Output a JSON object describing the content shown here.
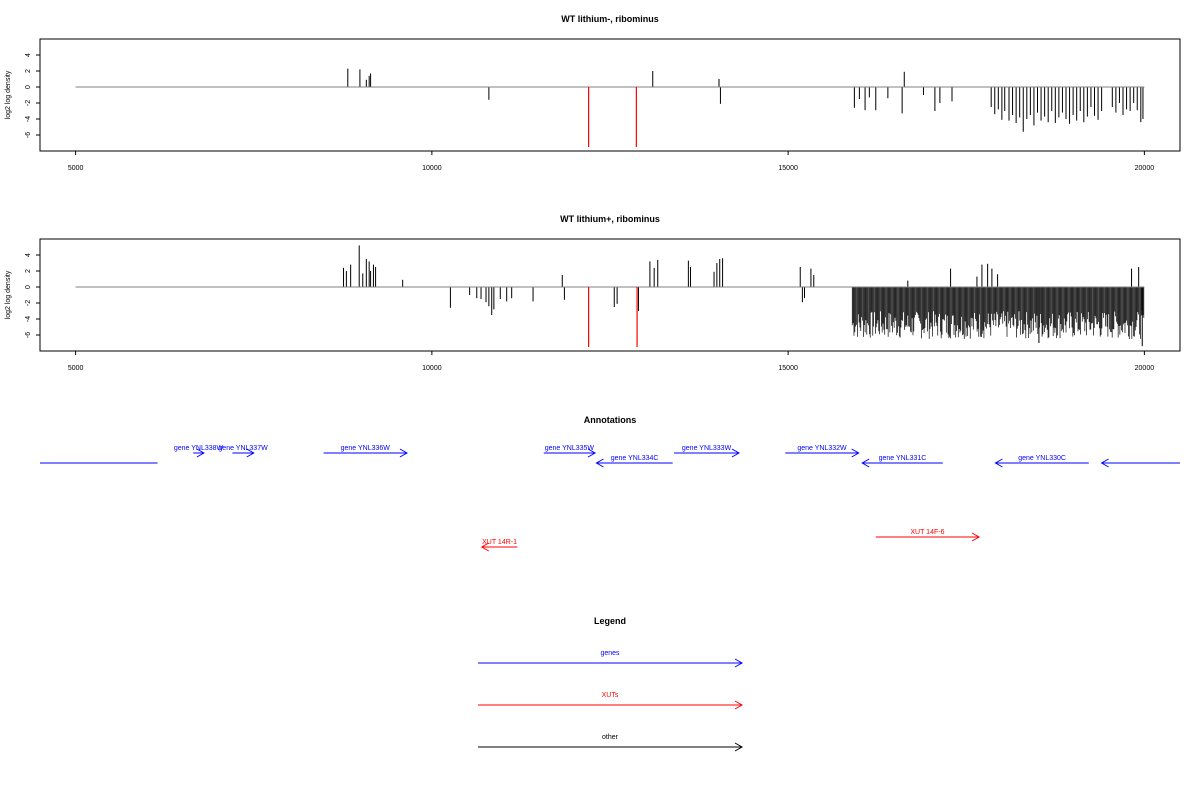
{
  "chart_data": [
    {
      "type": "bar",
      "title": "WT lithium-, ribominus",
      "ylabel": "log2 log density",
      "xlim": [
        4500,
        20500
      ],
      "ylim": [
        -8,
        6
      ],
      "xticks": [
        5000,
        10000,
        15000,
        20000
      ],
      "xtick_labels": [
        "5000",
        "10000",
        "15000",
        "20000"
      ],
      "yticks": [
        -6,
        -4,
        -2,
        0,
        2,
        4
      ],
      "ytick_labels": [
        "-6",
        "-4",
        "-2",
        "0",
        "2",
        "4"
      ],
      "baseline": {
        "from": 5000,
        "to": 20000,
        "value": 0
      },
      "bar_color": "#000000",
      "highlight_color": "#ff0000",
      "bars": [
        [
          8820,
          2.3
        ],
        [
          8990,
          2.2
        ],
        [
          9080,
          0.9
        ],
        [
          9120,
          1.4
        ],
        [
          9140,
          1.7
        ],
        [
          10800,
          -1.6
        ],
        [
          13100,
          2.0
        ],
        [
          14030,
          1.0
        ],
        [
          14050,
          -2.1
        ],
        [
          15930,
          -2.6
        ],
        [
          16000,
          -1.5
        ],
        [
          16080,
          -2.9
        ],
        [
          16140,
          -1.3
        ],
        [
          16230,
          -2.9
        ],
        [
          16400,
          -1.4
        ],
        [
          16600,
          -3.3
        ],
        [
          16630,
          1.9
        ],
        [
          16900,
          -1.0
        ],
        [
          17060,
          -3.0
        ],
        [
          17130,
          -2.0
        ],
        [
          17300,
          -1.8
        ],
        [
          17850,
          -2.5
        ],
        [
          17900,
          -3.4
        ],
        [
          17950,
          -2.8
        ],
        [
          18000,
          -4.1
        ],
        [
          18040,
          -3.0
        ],
        [
          18100,
          -4.2
        ],
        [
          18150,
          -3.5
        ],
        [
          18200,
          -4.5
        ],
        [
          18250,
          -3.8
        ],
        [
          18300,
          -5.6
        ],
        [
          18350,
          -4.0
        ],
        [
          18400,
          -3.5
        ],
        [
          18450,
          -4.8
        ],
        [
          18500,
          -3.2
        ],
        [
          18550,
          -4.2
        ],
        [
          18600,
          -3.7
        ],
        [
          18650,
          -4.4
        ],
        [
          18700,
          -3.0
        ],
        [
          18750,
          -4.5
        ],
        [
          18800,
          -3.8
        ],
        [
          18850,
          -3.2
        ],
        [
          18900,
          -4.0
        ],
        [
          18950,
          -4.6
        ],
        [
          19000,
          -3.5
        ],
        [
          19050,
          -4.2
        ],
        [
          19100,
          -3.0
        ],
        [
          19150,
          -4.4
        ],
        [
          19200,
          -3.7
        ],
        [
          19250,
          -2.5
        ],
        [
          19300,
          -3.6
        ],
        [
          19350,
          -4.1
        ],
        [
          19400,
          -3.0
        ],
        [
          19550,
          -2.5
        ],
        [
          19600,
          -3.2
        ],
        [
          19650,
          -2.0
        ],
        [
          19700,
          -3.5
        ],
        [
          19750,
          -2.8
        ],
        [
          19800,
          -3.0
        ],
        [
          19850,
          -2.0
        ],
        [
          19900,
          -2.9
        ],
        [
          19950,
          -4.4
        ],
        [
          19980,
          -4.0
        ]
      ],
      "highlight_bars": [
        [
          12200,
          -7.5
        ],
        [
          12870,
          -7.5
        ]
      ]
    },
    {
      "type": "bar",
      "title": "WT lithium+, ribominus",
      "ylabel": "log2 log density",
      "xlim": [
        4500,
        20500
      ],
      "ylim": [
        -8,
        6
      ],
      "xticks": [
        5000,
        10000,
        15000,
        20000
      ],
      "xtick_labels": [
        "5000",
        "10000",
        "15000",
        "20000"
      ],
      "yticks": [
        -6,
        -4,
        -2,
        0,
        2,
        4
      ],
      "ytick_labels": [
        "-6",
        "-4",
        "-2",
        "0",
        "2",
        "4"
      ],
      "baseline": {
        "from": 5000,
        "to": 20000,
        "value": 0
      },
      "bar_color": "#000000",
      "highlight_color": "#ff0000",
      "bars": [
        [
          8760,
          2.4
        ],
        [
          8800,
          2.0
        ],
        [
          8860,
          2.8
        ],
        [
          8980,
          5.2
        ],
        [
          9030,
          1.7
        ],
        [
          9080,
          3.5
        ],
        [
          9120,
          3.2
        ],
        [
          9140,
          2.0
        ],
        [
          9180,
          2.8
        ],
        [
          9210,
          2.5
        ],
        [
          9590,
          0.9
        ],
        [
          10260,
          -2.6
        ],
        [
          10530,
          -1.0
        ],
        [
          10630,
          -1.4
        ],
        [
          10690,
          -1.5
        ],
        [
          10760,
          -1.9
        ],
        [
          10800,
          -2.4
        ],
        [
          10840,
          -3.5
        ],
        [
          10870,
          -2.8
        ],
        [
          10960,
          -1.5
        ],
        [
          11050,
          -1.8
        ],
        [
          11120,
          -1.4
        ],
        [
          11420,
          -1.8
        ],
        [
          11830,
          1.5
        ],
        [
          11860,
          -1.6
        ],
        [
          12560,
          -2.5
        ],
        [
          12600,
          -2.1
        ],
        [
          12900,
          -3.0
        ],
        [
          13060,
          3.2
        ],
        [
          13120,
          2.4
        ],
        [
          13170,
          3.4
        ],
        [
          13600,
          3.3
        ],
        [
          13630,
          2.5
        ],
        [
          13960,
          1.9
        ],
        [
          14000,
          3.0
        ],
        [
          14040,
          3.5
        ],
        [
          14080,
          3.6
        ],
        [
          15170,
          2.5
        ],
        [
          15200,
          -1.9
        ],
        [
          15230,
          -1.4
        ],
        [
          15320,
          2.3
        ],
        [
          15360,
          1.5
        ]
      ],
      "dense_block": {
        "from": 15900,
        "to": 20000,
        "min": -6.5,
        "max": -3.0,
        "step": 12,
        "positive_spikes": [
          [
            16680,
            0.8
          ],
          [
            17280,
            2.3
          ],
          [
            17650,
            1.3
          ],
          [
            17720,
            2.8
          ],
          [
            17800,
            2.9
          ],
          [
            17860,
            2.3
          ],
          [
            17940,
            1.6
          ],
          [
            19820,
            2.3
          ],
          [
            19920,
            2.5
          ]
        ],
        "min_extreme": [
          [
            18520,
            -7.0
          ],
          [
            19970,
            -7.4
          ]
        ]
      },
      "highlight_bars": [
        [
          12200,
          -7.5
        ],
        [
          12880,
          -7.5
        ]
      ]
    }
  ],
  "annotations": {
    "title": "Annotations",
    "xlim": [
      4500,
      20500
    ],
    "genes_color": "#0000ff",
    "xuts_color": "#ff0000",
    "genes": [
      {
        "label": "",
        "from": 4500,
        "to": 6150,
        "dir": "none",
        "row": 1
      },
      {
        "label": "gene YNL338W",
        "from": 6650,
        "to": 6800,
        "dir": "right",
        "row": 0
      },
      {
        "label": "gene YNL337W",
        "from": 7200,
        "to": 7500,
        "dir": "right",
        "row": 0
      },
      {
        "label": "gene YNL336W",
        "from": 8480,
        "to": 9650,
        "dir": "right",
        "row": 0
      },
      {
        "label": "gene YNL335W",
        "from": 11570,
        "to": 12290,
        "dir": "right",
        "row": 0
      },
      {
        "label": "gene YNL334C",
        "from": 12310,
        "to": 13380,
        "dir": "left",
        "row": 1
      },
      {
        "label": "gene YNL333W",
        "from": 13400,
        "to": 14310,
        "dir": "right",
        "row": 0
      },
      {
        "label": "gene YNL332W",
        "from": 14960,
        "to": 15990,
        "dir": "right",
        "row": 0
      },
      {
        "label": "gene YNL331C",
        "from": 16040,
        "to": 17170,
        "dir": "left",
        "row": 1
      },
      {
        "label": "gene YNL330C",
        "from": 17910,
        "to": 19220,
        "dir": "left",
        "row": 1
      },
      {
        "label": "",
        "from": 19400,
        "to": 20500,
        "dir": "left",
        "row": 1
      }
    ],
    "xuts": [
      {
        "label": "XUT 14R-1",
        "from": 10700,
        "to": 11200,
        "dir": "left"
      },
      {
        "label": "XUT 14F-6",
        "from": 16230,
        "to": 17680,
        "dir": "right"
      }
    ]
  },
  "legend": {
    "title": "Legend",
    "items": [
      {
        "label": "genes",
        "color": "#0000ff"
      },
      {
        "label": "XUTs",
        "color": "#ff0000"
      },
      {
        "label": "other",
        "color": "#000000"
      }
    ]
  }
}
